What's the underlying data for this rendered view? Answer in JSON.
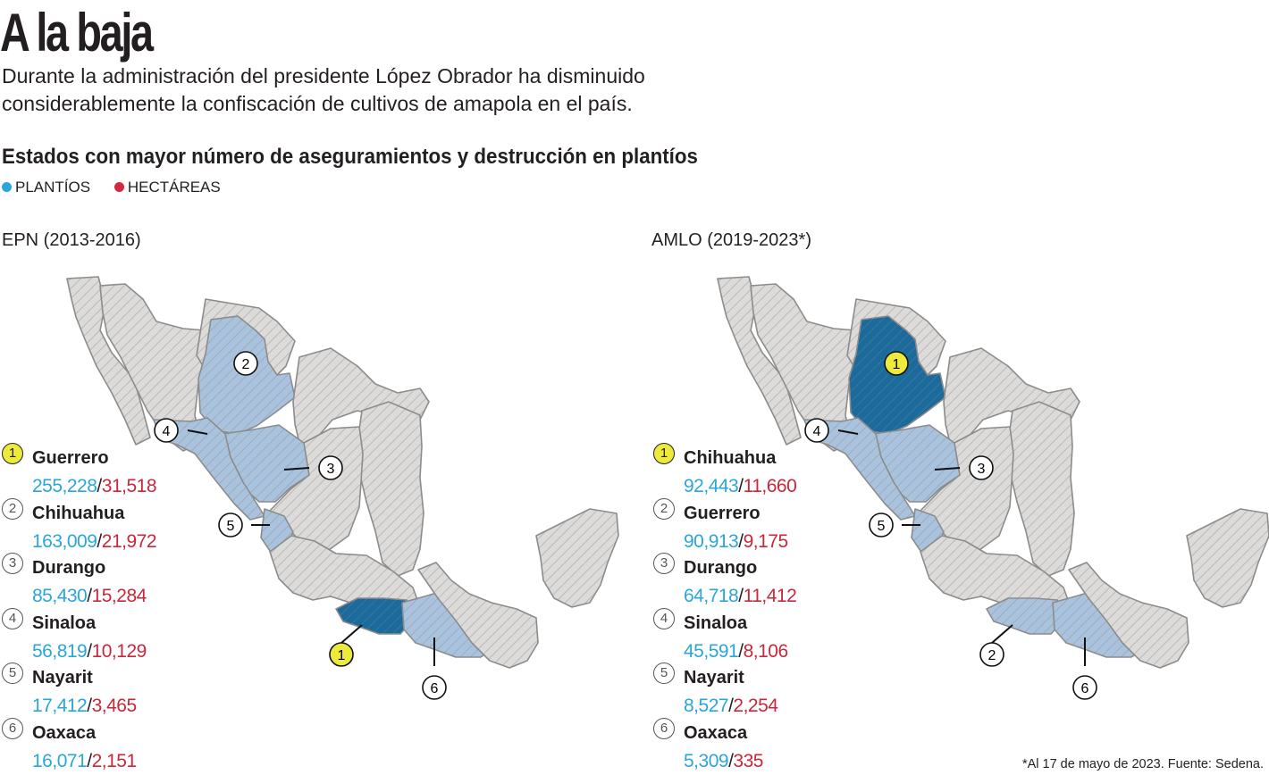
{
  "title": "A la baja",
  "intro": "Durante la administración del presidente López Obrador ha disminuido considerablemente la confiscación de cultivos de amapola en el país.",
  "subtitle": "Estados con mayor número de aseguramientos y destrucción en plantíos",
  "legend": [
    {
      "label": "PLANTÍOS",
      "color": "#2aa6da"
    },
    {
      "label": "HECTÁREAS",
      "color": "#d5283f"
    }
  ],
  "colors": {
    "rank1": "#1b6a9c",
    "top_state": "#a9c3de",
    "other_state": "#dcdbd9",
    "border": "#8c8c8c",
    "badge_first": "#eeea3b"
  },
  "maps": [
    {
      "period": "EPN (2013-2016)",
      "rank1_state": "Guerrero",
      "map_labels": [
        "2",
        "4",
        "3",
        "5",
        "1",
        "6"
      ],
      "ranking": [
        {
          "rank": "1",
          "state": "Guerrero",
          "plantios": "255,228",
          "hectareas": "31,518"
        },
        {
          "rank": "2",
          "state": "Chihuahua",
          "plantios": "163,009",
          "hectareas": "21,972"
        },
        {
          "rank": "3",
          "state": "Durango",
          "plantios": "85,430",
          "hectareas": "15,284"
        },
        {
          "rank": "4",
          "state": "Sinaloa",
          "plantios": "56,819",
          "hectareas": "10,129"
        },
        {
          "rank": "5",
          "state": "Nayarit",
          "plantios": "17,412",
          "hectareas": "3,465"
        },
        {
          "rank": "6",
          "state": "Oaxaca",
          "plantios": "16,071",
          "hectareas": "2,151"
        }
      ]
    },
    {
      "period": "AMLO (2019-2023*)",
      "rank1_state": "Chihuahua",
      "map_labels": [
        "1",
        "4",
        "3",
        "5",
        "2",
        "6"
      ],
      "ranking": [
        {
          "rank": "1",
          "state": "Chihuahua",
          "plantios": "92,443",
          "hectareas": "11,660"
        },
        {
          "rank": "2",
          "state": "Guerrero",
          "plantios": "90,913",
          "hectareas": "9,175"
        },
        {
          "rank": "3",
          "state": "Durango",
          "plantios": "64,718",
          "hectareas": "11,412"
        },
        {
          "rank": "4",
          "state": "Sinaloa",
          "plantios": "45,591",
          "hectareas": "8,106"
        },
        {
          "rank": "5",
          "state": "Nayarit",
          "plantios": "8,527",
          "hectareas": "2,254"
        },
        {
          "rank": "6",
          "state": "Oaxaca",
          "plantios": "5,309",
          "hectareas": "335"
        }
      ]
    }
  ],
  "footnote": "*Al 17 de mayo de 2023. Fuente: Sedena."
}
